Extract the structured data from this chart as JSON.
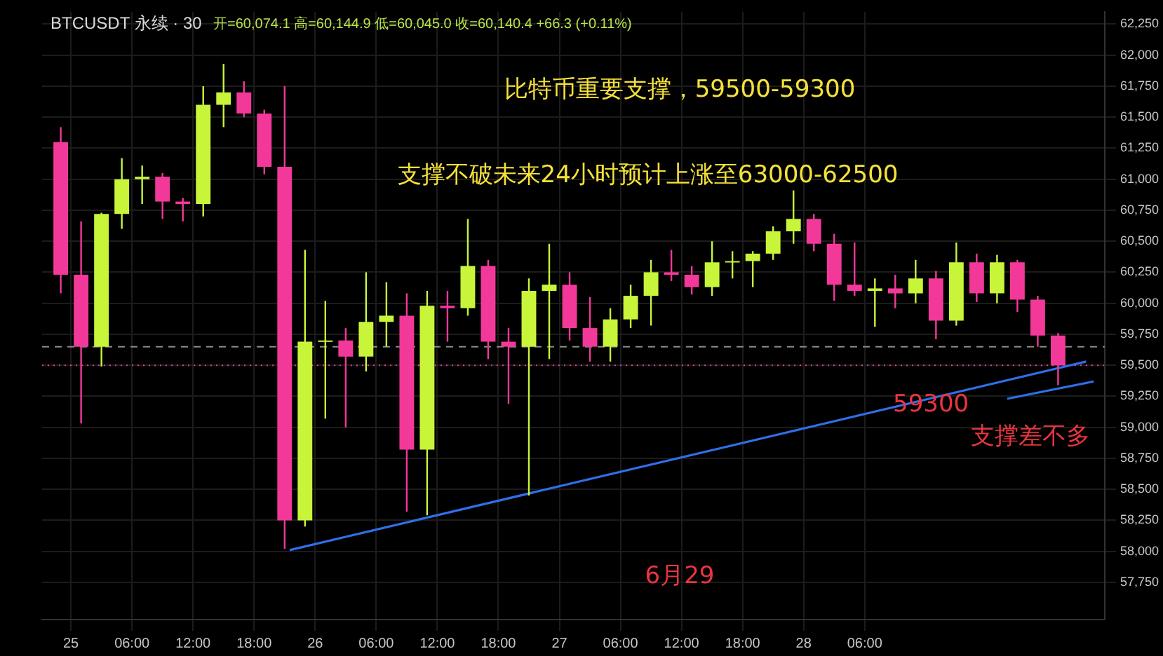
{
  "chart_data": {
    "type": "candlestick",
    "title": "BTCUSDT 永续 · 30",
    "subtitle": "开=60,074.1 高=60,144.9 低=60,045.0 收=60,140.4 +66.3 (+0.11%)",
    "x": [
      "--06-24T23:00",
      "--06-25T01:00",
      "--06-25T03:00",
      "--06-25T05:00",
      "--06-25T07:00",
      "--06-25T09:00",
      "--06-25T11:00",
      "--06-25T13:00",
      "--06-25T15:00",
      "--06-25T17:00",
      "--06-25T19:00",
      "--06-25T21:00",
      "--06-25T23:00",
      "--06-26T01:00",
      "--06-26T03:00",
      "--06-26T05:00",
      "--06-26T07:00",
      "--06-26T09:00",
      "--06-26T11:00",
      "--06-26T13:00",
      "--06-26T15:00",
      "--06-26T17:00",
      "--06-26T19:00",
      "--06-26T21:00",
      "--06-26T23:00",
      "--06-27T01:00",
      "--06-27T03:00",
      "--06-27T05:00",
      "--06-27T07:00",
      "--06-27T09:00",
      "--06-27T11:00",
      "--06-27T13:00",
      "--06-27T15:00",
      "--06-27T17:00",
      "--06-27T19:00",
      "--06-27T21:00",
      "--06-27T23:00",
      "--06-28T01:00",
      "--06-28T03:00",
      "--06-28T05:00",
      "--06-28T07:00",
      "--06-28T09:00",
      "--06-28T11:00",
      "--06-28T13:00",
      "--06-28T15:00",
      "--06-28T17:00",
      "--06-28T19:00",
      "--06-28T21:00",
      "--06-28T23:00",
      "--06-29T01:00"
    ],
    "ohlc": [
      [
        61300,
        61420,
        60080,
        60230
      ],
      [
        60230,
        60660,
        59030,
        59650
      ],
      [
        59650,
        60730,
        59490,
        60720
      ],
      [
        60720,
        61170,
        60600,
        61000
      ],
      [
        61000,
        61110,
        60800,
        61020
      ],
      [
        61020,
        61050,
        60680,
        60820
      ],
      [
        60820,
        60850,
        60660,
        60800
      ],
      [
        60800,
        61750,
        60700,
        61600
      ],
      [
        61600,
        61930,
        61420,
        61700
      ],
      [
        61700,
        61790,
        61500,
        61530
      ],
      [
        61530,
        61560,
        61040,
        61100
      ],
      [
        61100,
        61750,
        58020,
        58250
      ],
      [
        58250,
        60430,
        58200,
        59690
      ],
      [
        59690,
        60020,
        59070,
        59700
      ],
      [
        59700,
        59800,
        59000,
        59570
      ],
      [
        59570,
        60250,
        59450,
        59850
      ],
      [
        59850,
        60170,
        59650,
        59900
      ],
      [
        59900,
        60080,
        58320,
        58820
      ],
      [
        58820,
        60100,
        58290,
        59980
      ],
      [
        59980,
        60100,
        59690,
        59960
      ],
      [
        59960,
        60680,
        59900,
        60300
      ],
      [
        60300,
        60350,
        59550,
        59690
      ],
      [
        59690,
        59800,
        59190,
        59650
      ],
      [
        59650,
        60200,
        58450,
        60100
      ],
      [
        60100,
        60480,
        59550,
        60150
      ],
      [
        60150,
        60250,
        59700,
        59800
      ],
      [
        59800,
        60050,
        59530,
        59650
      ],
      [
        59650,
        59960,
        59530,
        59870
      ],
      [
        59870,
        60150,
        59800,
        60060
      ],
      [
        60060,
        60350,
        59820,
        60250
      ],
      [
        60250,
        60430,
        60180,
        60230
      ],
      [
        60230,
        60300,
        60070,
        60130
      ],
      [
        60130,
        60500,
        60060,
        60330
      ],
      [
        60330,
        60420,
        60200,
        60340
      ],
      [
        60340,
        60420,
        60130,
        60400
      ],
      [
        60400,
        60620,
        60350,
        60580
      ],
      [
        60580,
        60910,
        60480,
        60680
      ],
      [
        60680,
        60720,
        60420,
        60480
      ],
      [
        60480,
        60560,
        60020,
        60150
      ],
      [
        60150,
        60490,
        60060,
        60100
      ],
      [
        60100,
        60200,
        59810,
        60120
      ],
      [
        60120,
        60230,
        59960,
        60080
      ],
      [
        60080,
        60350,
        60000,
        60200
      ],
      [
        60200,
        60260,
        59710,
        59860
      ],
      [
        59860,
        60490,
        59820,
        60330
      ],
      [
        60330,
        60400,
        60010,
        60080
      ],
      [
        60080,
        60390,
        60000,
        60330
      ],
      [
        60330,
        60350,
        59930,
        60030
      ],
      [
        60030,
        60060,
        59650,
        59740
      ],
      [
        59740,
        59760,
        59340,
        59500
      ]
    ],
    "colors": [
      "#f2399a",
      "#f2399a",
      "#c8f53a",
      "#c8f53a",
      "#c8f53a",
      "#f2399a",
      "#f2399a",
      "#c8f53a",
      "#c8f53a",
      "#f2399a",
      "#f2399a",
      "#f2399a",
      "#c8f53a",
      "#c8f53a",
      "#f2399a",
      "#c8f53a",
      "#c8f53a",
      "#f2399a",
      "#c8f53a",
      "#f2399a",
      "#c8f53a",
      "#f2399a",
      "#f2399a",
      "#c8f53a",
      "#c8f53a",
      "#f2399a",
      "#f2399a",
      "#c8f53a",
      "#c8f53a",
      "#c8f53a",
      "#f2399a",
      "#f2399a",
      "#c8f53a",
      "#c8f53a",
      "#c8f53a",
      "#c8f53a",
      "#c8f53a",
      "#f2399a",
      "#f2399a",
      "#f2399a",
      "#c8f53a",
      "#f2399a",
      "#c8f53a",
      "#f2399a",
      "#c8f53a",
      "#f2399a",
      "#c8f53a",
      "#f2399a",
      "#f2399a",
      "#f2399a"
    ],
    "series": [
      {
        "type": "line",
        "color": "#2f6fe8",
        "x": [
          "--06-25T21:30",
          "--06-29T03:45"
        ],
        "values": [
          58010,
          59530
        ]
      },
      {
        "type": "line",
        "color": "#2f6fe8",
        "x": [
          "--06-28T20:00",
          "--06-29T04:30"
        ],
        "values": [
          59230,
          59370
        ]
      }
    ],
    "ref_lines": [
      {
        "axis": "y",
        "value": 59650,
        "color": "#8a8a8a",
        "line_style": "dashed"
      },
      {
        "axis": "y",
        "value": 59500,
        "color": "#f2399a",
        "line_style": "dotted"
      }
    ],
    "annotations": [
      "比特币重要支撑，59500-59300",
      "支撑不破未来24小时预计上涨至63000-62500",
      {
        "text": "59300",
        "x": "--06-28T12:30",
        "y": 59180
      },
      "支撑差不多",
      "6月29"
    ],
    "xlim": [
      "--06-24T21:10",
      "--06-29T05:35"
    ],
    "xticks": [
      {
        "value": "--06-25T00:00",
        "label": "25"
      },
      {
        "value": "--06-25T06:00",
        "label": "06:00"
      },
      {
        "value": "--06-25T12:00",
        "label": "12:00"
      },
      {
        "value": "--06-25T18:00",
        "label": "18:00"
      },
      {
        "value": "--06-26T00:00",
        "label": "26"
      },
      {
        "value": "--06-26T06:00",
        "label": "06:00"
      },
      {
        "value": "--06-26T12:00",
        "label": "12:00"
      },
      {
        "value": "--06-26T18:00",
        "label": "18:00"
      },
      {
        "value": "--06-27T00:00",
        "label": "27"
      },
      {
        "value": "--06-27T06:00",
        "label": "06:00"
      },
      {
        "value": "--06-27T12:00",
        "label": "12:00"
      },
      {
        "value": "--06-27T18:00",
        "label": "18:00"
      },
      {
        "value": "--06-28T00:00",
        "label": "28"
      },
      {
        "value": "--06-28T06:00",
        "label": "06:00"
      }
    ],
    "ylim": [
      57450,
      62350
    ],
    "yticks": [
      {
        "value": 57750,
        "label": "57,750"
      },
      {
        "value": 58000,
        "label": "58,000"
      },
      {
        "value": 58250,
        "label": "58,250"
      },
      {
        "value": 58500,
        "label": "58,500"
      },
      {
        "value": 58750,
        "label": "58,750"
      },
      {
        "value": 59000,
        "label": "59,000"
      },
      {
        "value": 59250,
        "label": "59,250"
      },
      {
        "value": 59500,
        "label": "59,500"
      },
      {
        "value": 59750,
        "label": "59,750"
      },
      {
        "value": 60000,
        "label": "60,000"
      },
      {
        "value": 60250,
        "label": "60,250"
      },
      {
        "value": 60500,
        "label": "60,500"
      },
      {
        "value": 60750,
        "label": "60,750"
      },
      {
        "value": 61000,
        "label": "61,000"
      },
      {
        "value": 61250,
        "label": "61,250"
      },
      {
        "value": 61500,
        "label": "61,500"
      },
      {
        "value": 61750,
        "label": "61,750"
      },
      {
        "value": 62000,
        "label": "62,000"
      },
      {
        "value": 62250,
        "label": "62,250"
      }
    ],
    "grid": true,
    "legend": false
  }
}
